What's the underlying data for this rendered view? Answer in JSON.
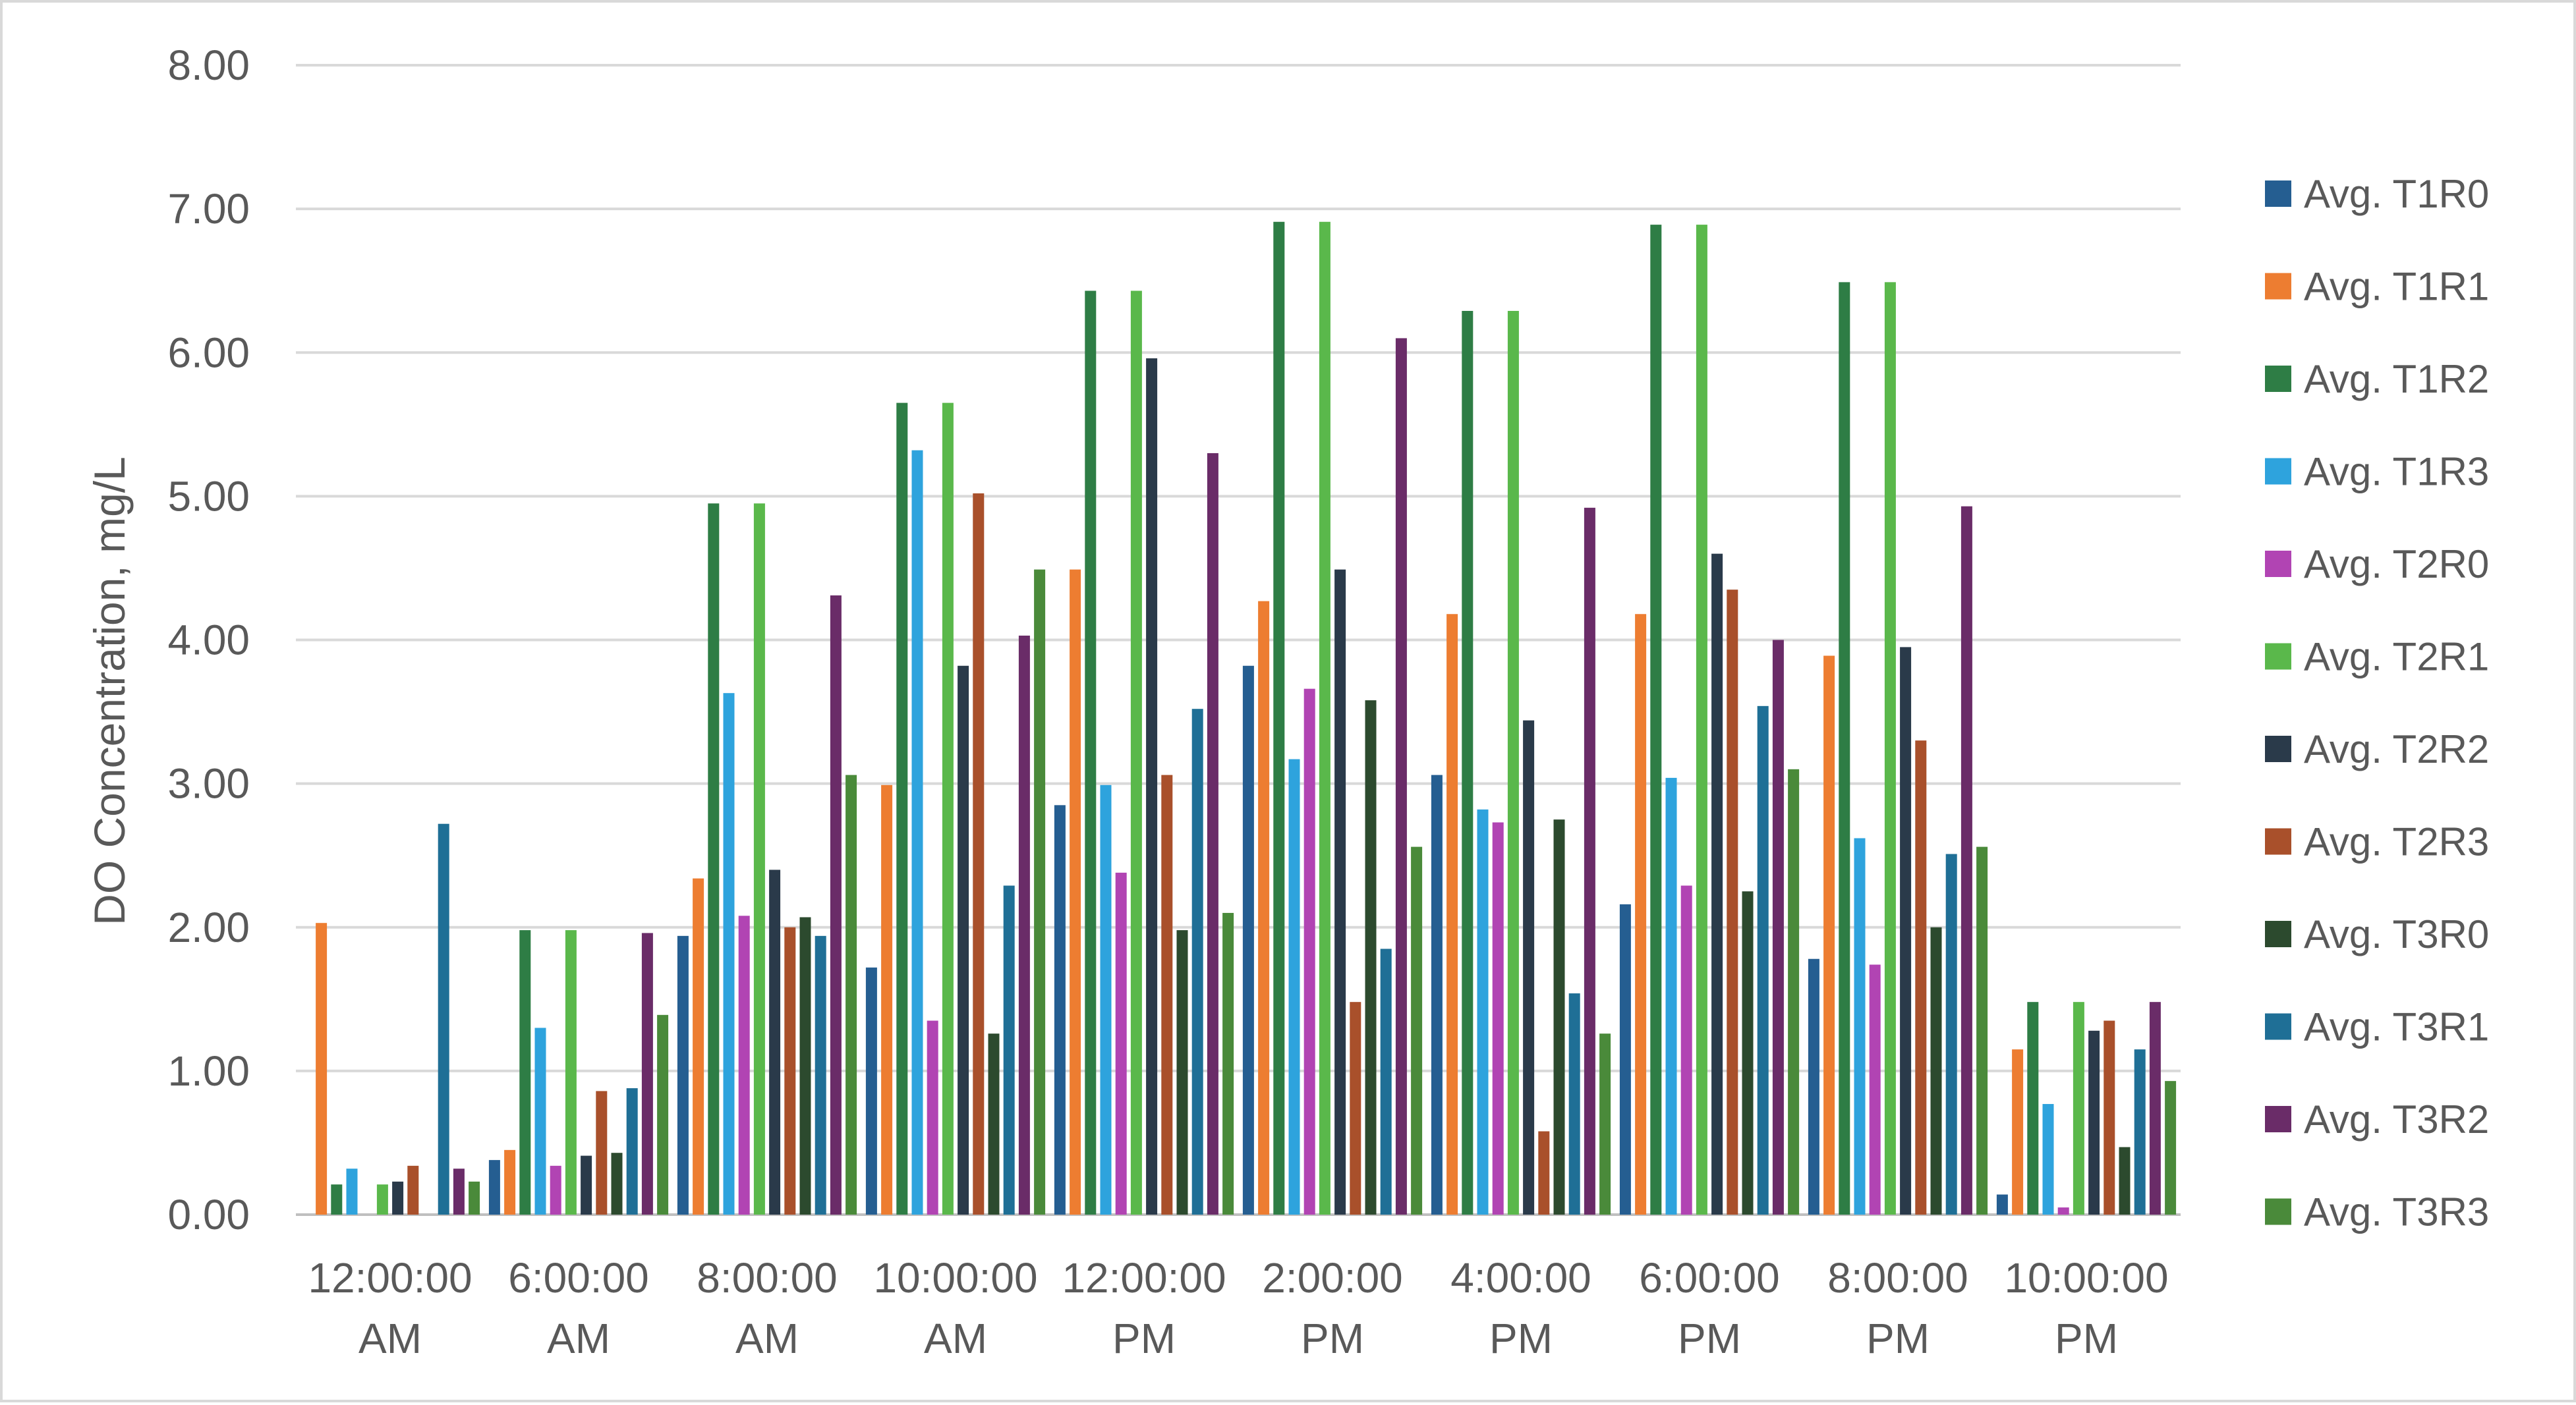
{
  "chart_data": {
    "type": "bar",
    "title": "",
    "xlabel": "",
    "ylabel": "DO Concentration, mg/L",
    "ylim": [
      0,
      8
    ],
    "y_ticks": [
      "0.00",
      "1.00",
      "2.00",
      "3.00",
      "4.00",
      "5.00",
      "6.00",
      "7.00",
      "8.00"
    ],
    "grid": true,
    "legend_position": "right",
    "categories": [
      [
        "12:00:00",
        "AM"
      ],
      [
        "6:00:00",
        "AM"
      ],
      [
        "8:00:00",
        "AM"
      ],
      [
        "10:00:00",
        "AM"
      ],
      [
        "12:00:00",
        "PM"
      ],
      [
        "2:00:00",
        "PM"
      ],
      [
        "4:00:00",
        "PM"
      ],
      [
        "6:00:00",
        "PM"
      ],
      [
        "8:00:00",
        "PM"
      ],
      [
        "10:00:00",
        "PM"
      ]
    ],
    "series": [
      {
        "name": "Avg. T1R0",
        "color": "#255e91",
        "values": [
          0.0,
          0.38,
          1.94,
          1.72,
          2.85,
          3.82,
          3.06,
          2.16,
          1.78,
          0.14
        ]
      },
      {
        "name": "Avg. T1R1",
        "color": "#ed7d31",
        "values": [
          2.03,
          0.45,
          2.34,
          2.99,
          4.49,
          4.27,
          4.18,
          4.18,
          3.89,
          1.15
        ]
      },
      {
        "name": "Avg. T1R2",
        "color": "#2e7d45",
        "values": [
          0.21,
          1.98,
          4.95,
          5.65,
          6.43,
          6.91,
          6.29,
          6.89,
          6.49,
          1.48
        ]
      },
      {
        "name": "Avg. T1R3",
        "color": "#2ea3dd",
        "values": [
          0.32,
          1.3,
          3.63,
          5.32,
          2.99,
          3.17,
          2.82,
          3.04,
          2.62,
          0.77
        ]
      },
      {
        "name": "Avg. T2R0",
        "color": "#b144b3",
        "values": [
          0.0,
          0.34,
          2.08,
          1.35,
          2.38,
          3.66,
          2.73,
          2.29,
          1.74,
          0.05
        ]
      },
      {
        "name": "Avg. T2R1",
        "color": "#5ab84b",
        "values": [
          0.21,
          1.98,
          4.95,
          5.65,
          6.43,
          6.91,
          6.29,
          6.89,
          6.49,
          1.48
        ]
      },
      {
        "name": "Avg.  T2R2",
        "color": "#2a3a4a",
        "values": [
          0.23,
          0.41,
          2.4,
          3.82,
          5.96,
          4.49,
          3.44,
          4.6,
          3.95,
          1.28
        ]
      },
      {
        "name": "Avg.  T2R3",
        "color": "#a9502b",
        "values": [
          0.34,
          0.86,
          2.0,
          5.02,
          3.06,
          1.48,
          0.58,
          4.35,
          3.3,
          1.35
        ]
      },
      {
        "name": "Avg.  T3R0",
        "color": "#2c4a2e",
        "values": [
          0.0,
          0.43,
          2.07,
          1.26,
          1.98,
          3.58,
          2.75,
          2.25,
          2.0,
          0.47
        ]
      },
      {
        "name": "Avg.  T3R1",
        "color": "#1f6f96",
        "values": [
          2.72,
          0.88,
          1.94,
          2.29,
          3.52,
          1.85,
          1.54,
          3.54,
          2.51,
          1.15
        ]
      },
      {
        "name": "Avg.  T3R2",
        "color": "#6a2c68",
        "values": [
          0.32,
          1.96,
          4.31,
          4.03,
          5.3,
          6.1,
          4.92,
          4.0,
          4.93,
          1.48
        ]
      },
      {
        "name": "Avg.  T3R3",
        "color": "#4a8a3a",
        "values": [
          0.23,
          1.39,
          3.06,
          4.49,
          2.1,
          2.56,
          1.26,
          3.1,
          2.56,
          0.93
        ]
      }
    ]
  }
}
